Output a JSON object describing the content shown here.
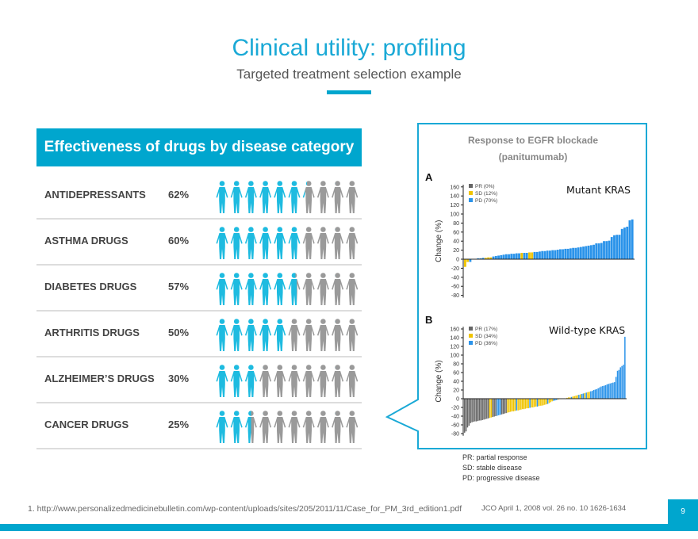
{
  "slide": {
    "title": "Clinical utility: profiling",
    "subtitle": "Targeted treatment selection example",
    "page_number": "9",
    "footnote": "1. http://www.personalizedmedicinebulletin.com/wp-content/uploads/sites/205/2011/11/Case_for_PM_3rd_edition1.pdf",
    "citation": "JCO April 1, 2008 vol. 26 no. 10 1626-1634",
    "accent_color": "#00a6ce"
  },
  "effectiveness": {
    "heading": "Effectiveness of drugs by disease category",
    "filled_color": "#1ebbe0",
    "empty_color": "#9a9a9a",
    "rows": [
      {
        "label": "ANTIDEPRESSANTS",
        "percent_label": "62%",
        "percent": 62
      },
      {
        "label": "ASTHMA DRUGS",
        "percent_label": "60%",
        "percent": 60
      },
      {
        "label": "DIABETES DRUGS",
        "percent_label": "57%",
        "percent": 57
      },
      {
        "label": "ARTHRITIS DRUGS",
        "percent_label": "50%",
        "percent": 50
      },
      {
        "label": "ALZHEIMER’S DRUGS",
        "percent_label": "30%",
        "percent": 30
      },
      {
        "label": "CANCER DRUGS",
        "percent_label": "25%",
        "percent": 25
      }
    ]
  },
  "callout": {
    "title_line1": "Response to EGFR blockade",
    "title_line2": "(panitumumab)",
    "notes": [
      "PR: partial response",
      "SD: stable disease",
      "PD: progressive disease"
    ]
  },
  "chart_data": [
    {
      "type": "bar",
      "panel": "A",
      "title": "Mutant KRAS",
      "ylabel": "Change (%)",
      "ylim": [
        -80,
        160
      ],
      "yticks": [
        160,
        140,
        120,
        100,
        80,
        60,
        40,
        20,
        0,
        -20,
        -40,
        -60,
        -80
      ],
      "legend": [
        {
          "code": "PR",
          "label": "PR (0%)",
          "color": "#666666"
        },
        {
          "code": "SD",
          "label": "SD (12%)",
          "color": "#f0c400"
        },
        {
          "code": "PD",
          "label": "PD (70%)",
          "color": "#2a93ea"
        }
      ],
      "values": [
        -17,
        -6,
        -6,
        0,
        0,
        2,
        2,
        3,
        3,
        4,
        4,
        6,
        7,
        8,
        9,
        10,
        11,
        11,
        12,
        12,
        13,
        13,
        14,
        14,
        14,
        15,
        15,
        16,
        16,
        17,
        18,
        18,
        19,
        19,
        20,
        20,
        21,
        22,
        22,
        23,
        23,
        24,
        25,
        25,
        26,
        27,
        28,
        29,
        30,
        31,
        32,
        35,
        35,
        36,
        40,
        40,
        41,
        49,
        53,
        54,
        54,
        67,
        70,
        72,
        86,
        88
      ],
      "response": [
        "SD",
        "SD",
        "PD",
        "PD",
        "PD",
        "PD",
        "PD",
        "PD",
        "SD",
        "SD",
        "SD",
        "PD",
        "PD",
        "PD",
        "PD",
        "PD",
        "PD",
        "PD",
        "PD",
        "PD",
        "PD",
        "PD",
        "SD",
        "PD",
        "PD",
        "SD",
        "SD",
        "PD",
        "PD",
        "PD",
        "PD",
        "PD",
        "PD",
        "PD",
        "PD",
        "PD",
        "PD",
        "PD",
        "PD",
        "PD",
        "PD",
        "PD",
        "PD",
        "PD",
        "PD",
        "PD",
        "PD",
        "PD",
        "PD",
        "PD",
        "PD",
        "PD",
        "PD",
        "PD",
        "PD",
        "PD",
        "PD",
        "PD",
        "PD",
        "PD",
        "PD",
        "PD",
        "PD",
        "PD",
        "PD",
        "PD"
      ]
    },
    {
      "type": "bar",
      "panel": "B",
      "title": "Wild-type  KRAS",
      "ylabel": "Change (%)",
      "ylim": [
        -80,
        160
      ],
      "yticks": [
        160,
        140,
        120,
        100,
        80,
        60,
        40,
        20,
        0,
        -20,
        -40,
        -60,
        -80
      ],
      "legend": [
        {
          "code": "PR",
          "label": "PR (17%)",
          "color": "#666666"
        },
        {
          "code": "SD",
          "label": "SD (34%)",
          "color": "#f0c400"
        },
        {
          "code": "PD",
          "label": "PD (36%)",
          "color": "#2a93ea"
        }
      ],
      "values": [
        -78,
        -75,
        -66,
        -62,
        -56,
        -54,
        -53,
        -52,
        -52,
        -51,
        -50,
        -50,
        -49,
        -48,
        -47,
        -46,
        -45,
        -44,
        -43,
        -42,
        -41,
        -40,
        -39,
        -38,
        -37,
        -36,
        -35,
        -34,
        -33,
        -32,
        -31,
        -30,
        -29,
        -29,
        -28,
        -27,
        -27,
        -26,
        -25,
        -24,
        -24,
        -23,
        -22,
        -22,
        -21,
        -20,
        -20,
        -19,
        -18,
        -18,
        -17,
        -16,
        -16,
        -15,
        -14,
        -13,
        -12,
        -10,
        -8,
        -6,
        -5,
        -4,
        -3,
        -2,
        -1,
        -1,
        0,
        0,
        0,
        2,
        3,
        3,
        4,
        5,
        6,
        7,
        8,
        9,
        10,
        11,
        12,
        13,
        14,
        15,
        16,
        17,
        18,
        20,
        21,
        22,
        24,
        26,
        28,
        29,
        30,
        31,
        33,
        34,
        35,
        36,
        37,
        38,
        50,
        64,
        66,
        72,
        75,
        78,
        142
      ],
      "response": [
        "PR",
        "PR",
        "PR",
        "PR",
        "PR",
        "PR",
        "PR",
        "PR",
        "PR",
        "PR",
        "PR",
        "PR",
        "PR",
        "PR",
        "PR",
        "PR",
        "PR",
        "SD",
        "SD",
        "PR",
        "PR",
        "PR",
        "PD",
        "PD",
        "PD",
        "PR",
        "PR",
        "PR",
        "PR",
        "SD",
        "SD",
        "SD",
        "SD",
        "SD",
        "SD",
        "PD",
        "SD",
        "SD",
        "SD",
        "SD",
        "SD",
        "SD",
        "SD",
        "SD",
        "PD",
        "SD",
        "SD",
        "SD",
        "SD",
        "PD",
        "SD",
        "SD",
        "SD",
        "SD",
        "SD",
        "SD",
        "PD",
        "SD",
        "SD",
        "SD",
        "PD",
        "PD",
        "PD",
        "SD",
        "SD",
        "SD",
        "SD",
        "SD",
        "SD",
        "SD",
        "SD",
        "SD",
        "PD",
        "SD",
        "SD",
        "SD",
        "SD",
        "PD",
        "SD",
        "PD",
        "PD",
        "SD",
        "PD",
        "SD",
        "SD",
        "PD",
        "PD",
        "PD",
        "PD",
        "PD",
        "PD",
        "PD",
        "PD",
        "PD",
        "PD",
        "PD",
        "PD",
        "PD",
        "PD",
        "PD",
        "PD",
        "PD",
        "PD",
        "PD",
        "PD",
        "PD",
        "PD",
        "PD",
        "PD"
      ]
    }
  ]
}
